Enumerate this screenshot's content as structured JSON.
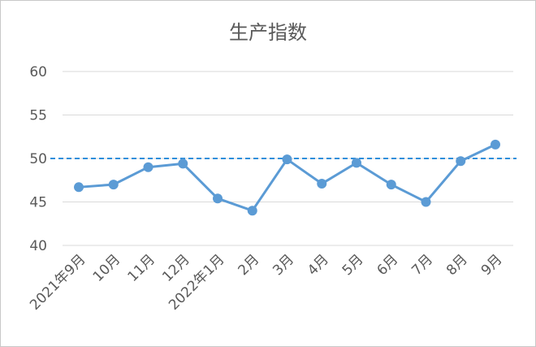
{
  "chart_data": {
    "type": "line",
    "title": "生产指数",
    "xlabel": "",
    "ylabel": "",
    "categories": [
      "2021年9月",
      "10月",
      "11月",
      "12月",
      "2022年1月",
      "2月",
      "3月",
      "4月",
      "5月",
      "6月",
      "7月",
      "8月",
      "9月"
    ],
    "series": [
      {
        "values": [
          46.7,
          47.0,
          49.0,
          49.4,
          45.4,
          44.0,
          49.9,
          47.1,
          49.5,
          47.0,
          45.0,
          49.7,
          51.6
        ]
      }
    ],
    "reference_line": 50,
    "ylim": [
      40,
      60
    ],
    "yticks": [
      "40",
      "45",
      "50",
      "55",
      "60"
    ],
    "grid": true,
    "legend": "none",
    "colors": {
      "series": "#5b9bd5",
      "reference": "#2e8fdc",
      "grid": "#d9d9d9",
      "text": "#595959"
    }
  }
}
